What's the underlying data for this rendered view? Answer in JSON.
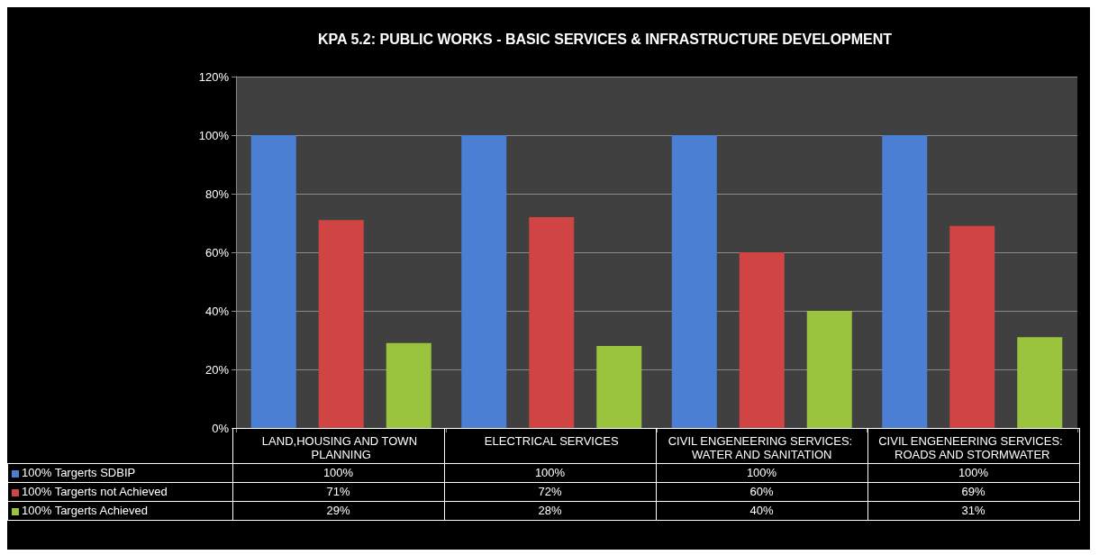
{
  "chart_data": {
    "type": "bar",
    "title": "KPA 5.2: PUBLIC WORKS - BASIC SERVICES & INFRASTRUCTURE DEVELOPMENT",
    "categories": [
      "LAND,HOUSING AND TOWN PLANNING",
      "ELECTRICAL SERVICES",
      "CIVIL ENGENEERING SERVICES: WATER AND SANITATION",
      "CIVIL ENGENEERING SERVICES: ROADS AND STORMWATER"
    ],
    "series": [
      {
        "name": "100% Targerts SDBIP",
        "color": "#4a7fd4",
        "values": [
          100,
          100,
          100,
          100
        ],
        "value_labels": [
          "100%",
          "100%",
          "100%",
          "100%"
        ]
      },
      {
        "name": "100% Targerts not Achieved",
        "color": "#d04444",
        "values": [
          71,
          72,
          60,
          69
        ],
        "value_labels": [
          "71%",
          "72%",
          "60%",
          "69%"
        ]
      },
      {
        "name": "100% Targerts Achieved",
        "color": "#9ac43e",
        "values": [
          29,
          28,
          40,
          31
        ],
        "value_labels": [
          "29%",
          "28%",
          "40%",
          "31%"
        ]
      }
    ],
    "ylim": [
      0,
      120
    ],
    "yticks": [
      {
        "value": 0,
        "label": "0%"
      },
      {
        "value": 20,
        "label": "20%"
      },
      {
        "value": 40,
        "label": "40%"
      },
      {
        "value": 60,
        "label": "60%"
      },
      {
        "value": 80,
        "label": "80%"
      },
      {
        "value": 100,
        "label": "100%"
      },
      {
        "value": 120,
        "label": "120%"
      }
    ],
    "grid": "y",
    "legend": "bottom left"
  }
}
